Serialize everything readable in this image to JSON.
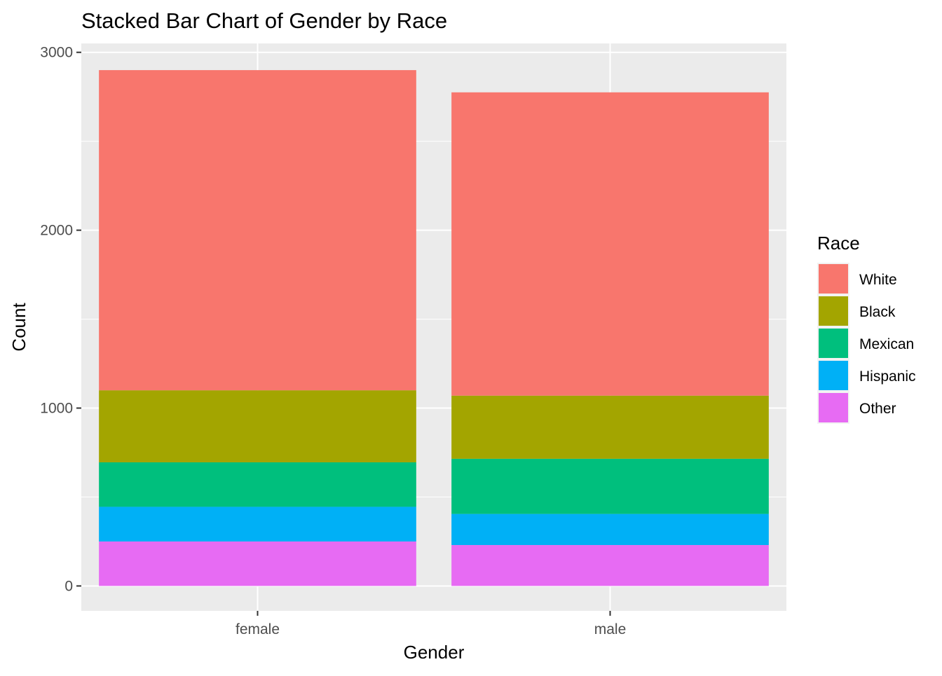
{
  "chart_data": {
    "type": "bar",
    "stacked": true,
    "title": "Stacked Bar Chart of Gender by Race",
    "xlabel": "Gender",
    "ylabel": "Count",
    "categories": [
      "female",
      "male"
    ],
    "ylim": [
      -140,
      3050
    ],
    "yticks": [
      0,
      1000,
      2000,
      3000
    ],
    "grid": true,
    "legend": {
      "title": "Race",
      "placement": "right"
    },
    "series": [
      {
        "name": "Other",
        "color": "#E76BF3",
        "values": [
          250,
          230
        ]
      },
      {
        "name": "Hispanic",
        "color": "#00B0F6",
        "values": [
          195,
          175
        ]
      },
      {
        "name": "Mexican",
        "color": "#00BF7D",
        "values": [
          250,
          310
        ]
      },
      {
        "name": "Black",
        "color": "#A3A500",
        "values": [
          405,
          355
        ]
      },
      {
        "name": "White",
        "color": "#F8766D",
        "values": [
          1800,
          1705
        ]
      }
    ],
    "legend_order": [
      "White",
      "Black",
      "Mexican",
      "Hispanic",
      "Other"
    ]
  }
}
